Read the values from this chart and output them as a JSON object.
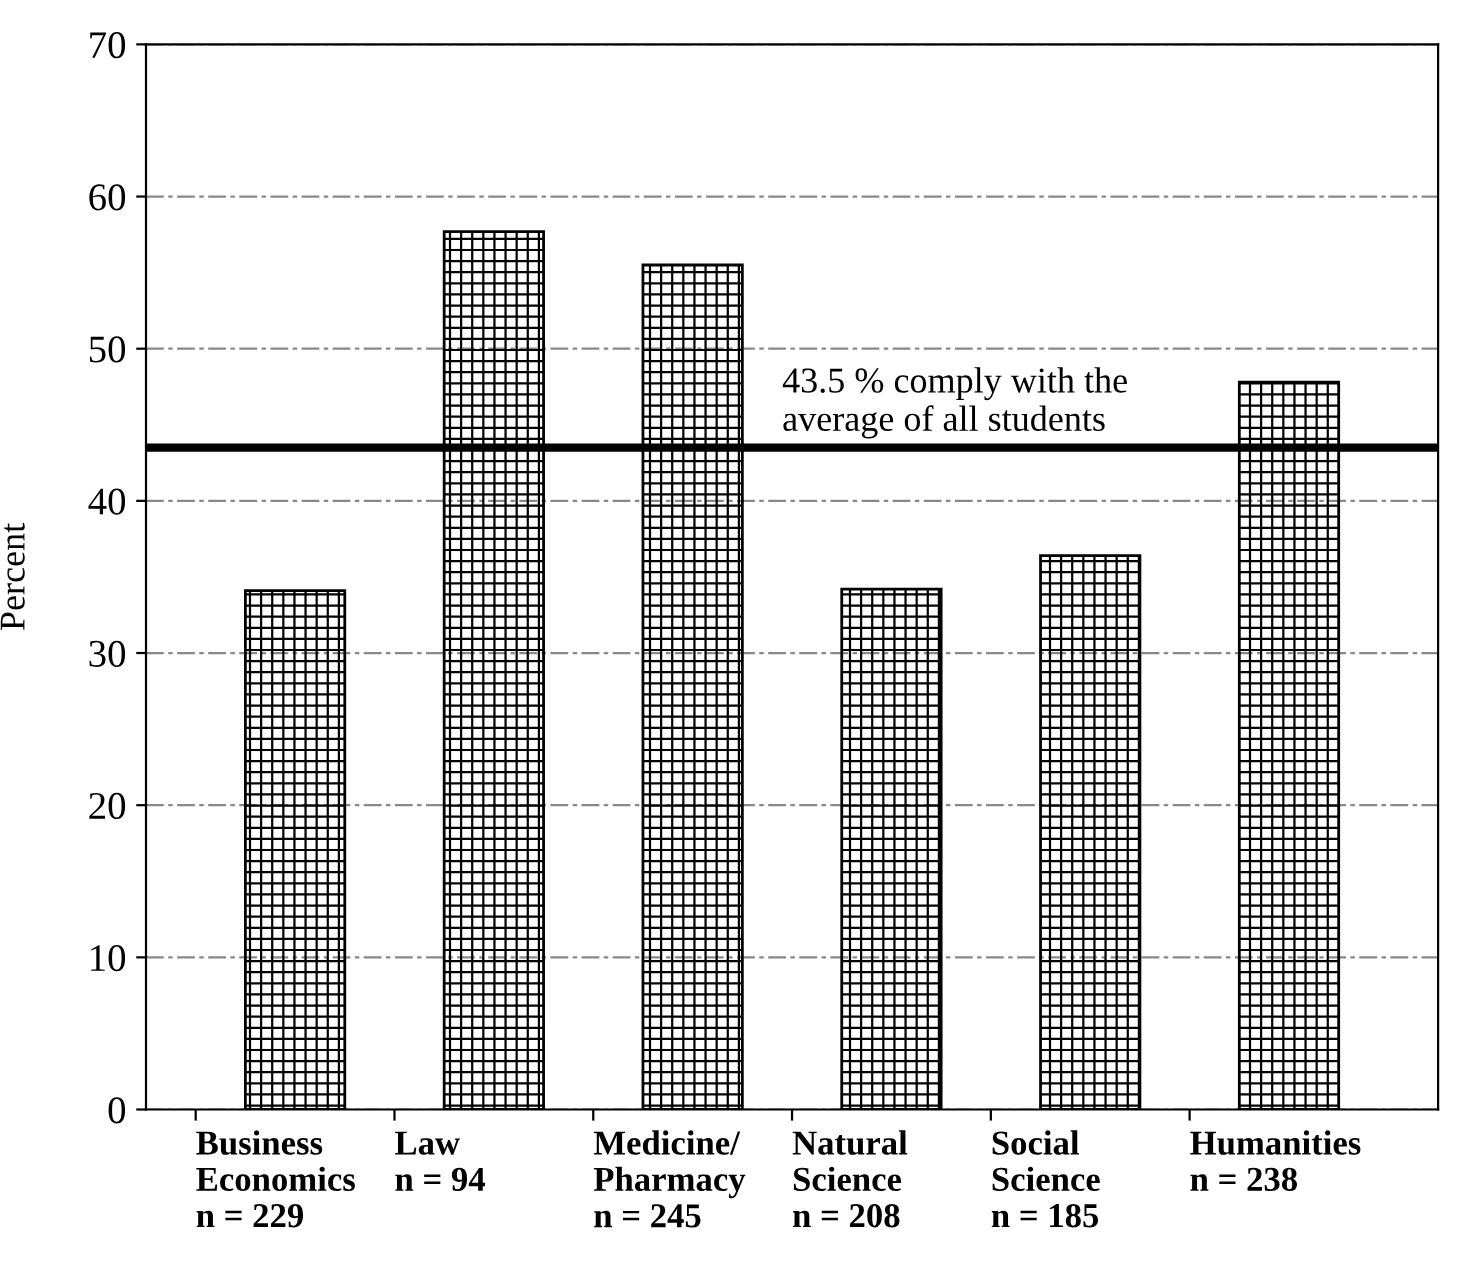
{
  "chart_data": {
    "type": "bar",
    "ylabel": "Percent",
    "categories": [
      "Business\nEconomics\nn = 229",
      "Law\nn = 94",
      "Medicine/\nPharmacy\nn = 245",
      "Natural\nScience\nn = 208",
      "Social\nScience\nn = 185",
      "Humanities\nn = 238"
    ],
    "values": [
      34.1,
      57.7,
      55.5,
      34.2,
      36.4,
      47.8
    ],
    "color": "#000000",
    "ylim": [
      0,
      70
    ],
    "yticks": [
      0,
      10,
      20,
      30,
      40,
      50,
      60,
      70
    ],
    "grid": "y",
    "ref_lines": [
      {
        "axis": "y",
        "value": 43.5,
        "label": "43.5 % comply with the\naverage of all students",
        "color": "#000000"
      }
    ]
  }
}
